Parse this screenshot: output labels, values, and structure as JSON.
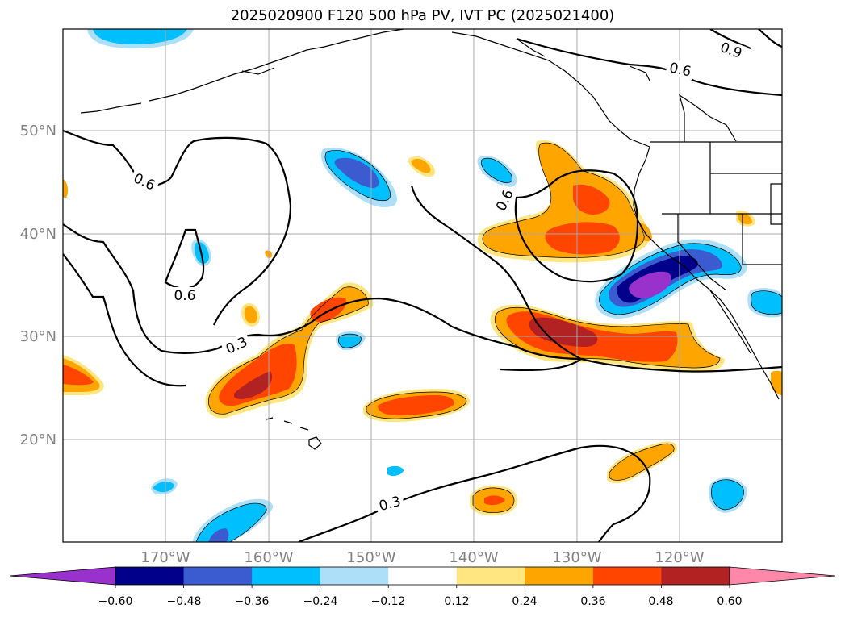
{
  "title": "2025020900 F120 500 hPa PV, IVT PC (2025021400)",
  "gridlines": {
    "lat_labels": [
      "50°N",
      "40°N",
      "30°N",
      "20°N"
    ],
    "lon_labels": [
      "170°W",
      "160°W",
      "150°W",
      "140°W",
      "130°W",
      "120°W"
    ]
  },
  "contour_labels": [
    "0.9",
    "0.6",
    "0.6",
    "0.6",
    "0.6",
    "0.3",
    "0.3"
  ],
  "colorbar": {
    "ticks": [
      "−0.60",
      "−0.48",
      "−0.36",
      "−0.24",
      "−0.12",
      "0.12",
      "0.24",
      "0.36",
      "0.48",
      "0.60"
    ],
    "colors": [
      "#9932CC",
      "#00008B",
      "#3A5CD0",
      "#00BFFF",
      "#ADE0F8",
      "#FFFFFF",
      "#FFE680",
      "#FFA500",
      "#FF4500",
      "#B22222",
      "#FF88AA"
    ]
  },
  "palette": {
    "orange": "#FFA500",
    "red": "#FF4500",
    "darkred": "#B22222",
    "yellow": "#FFE680",
    "cyan": "#00BFFF",
    "lightblue": "#ADE0F8",
    "royal": "#3A5CD0",
    "navy": "#00008B",
    "purple": "#9932CC"
  }
}
